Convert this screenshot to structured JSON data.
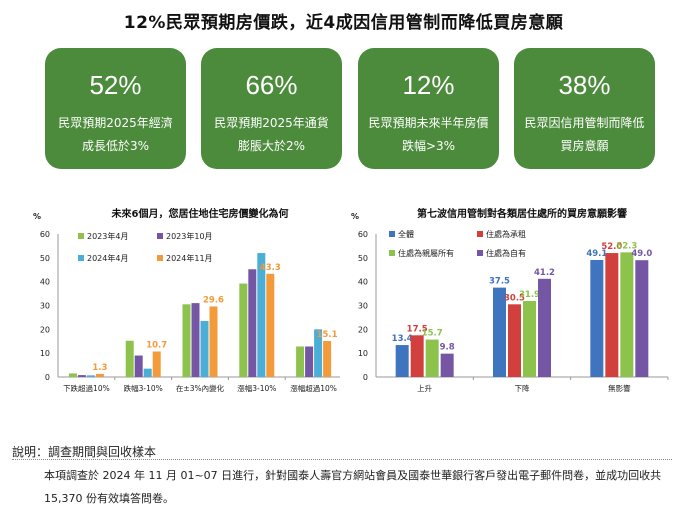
{
  "title": "12%民眾預期房價跌，近4成因信用管制而降低買房意願",
  "colors": {
    "card_bg": "#4b8b3b"
  },
  "cards": [
    {
      "value": "52%",
      "desc": "民眾預期2025年經濟成長低於3%"
    },
    {
      "value": "66%",
      "desc": "民眾預期2025年通貨膨脹大於2%"
    },
    {
      "value": "12%",
      "desc": "民眾預期未來半年房價跌幅>3%"
    },
    {
      "value": "38%",
      "desc": "民眾因信用管制而降低買房意願"
    }
  ],
  "chart_data": [
    {
      "type": "bar",
      "title": "未來6個月，您居住地住宅房價變化為何",
      "ylabel": "%",
      "ylim": [
        0,
        60
      ],
      "yticks": [
        0,
        10,
        20,
        30,
        40,
        50,
        60
      ],
      "categories": [
        "下跌超過10%",
        "跌幅3-10%",
        "在±3%內變化",
        "漲幅3-10%",
        "漲幅超過10%"
      ],
      "series": [
        {
          "name": "2023年4月",
          "color": "#8dc34c",
          "values": [
            1.5,
            15.2,
            30.5,
            39.2,
            12.8
          ]
        },
        {
          "name": "2023年10月",
          "color": "#7556a5",
          "values": [
            0.8,
            9.0,
            31.0,
            45.2,
            12.8
          ]
        },
        {
          "name": "2024年4月",
          "color": "#4aaed6",
          "values": [
            0.7,
            3.5,
            23.5,
            52.0,
            20.0
          ]
        },
        {
          "name": "2024年11月",
          "color": "#f39a3a",
          "values": [
            1.3,
            10.7,
            29.6,
            43.3,
            15.1
          ]
        }
      ],
      "labeled_series": 3,
      "legend": "top"
    },
    {
      "type": "bar",
      "title": "第七波信用管制對各類居住處所的買房意願影響",
      "ylabel": "%",
      "ylim": [
        0,
        60
      ],
      "yticks": [
        0,
        10,
        20,
        30,
        40,
        50,
        60
      ],
      "categories": [
        "上升",
        "下降",
        "無影響"
      ],
      "series": [
        {
          "name": "全體",
          "color": "#3f74bf",
          "values": [
            13.4,
            37.5,
            49.1
          ]
        },
        {
          "name": "住處為承租",
          "color": "#d2403e",
          "values": [
            17.5,
            30.5,
            52.0
          ]
        },
        {
          "name": "住處為親屬所有",
          "color": "#8dc34c",
          "values": [
            15.7,
            31.9,
            52.3
          ]
        },
        {
          "name": "住處為自有",
          "color": "#7556a5",
          "values": [
            9.8,
            41.2,
            49.0
          ]
        }
      ],
      "legend": "top-left"
    }
  ],
  "notes": {
    "title": "說明：調查期間與回收樣本",
    "text": "本項調查於 2024 年 11 月 01~07 日進行，針對國泰人壽官方網站會員及國泰世華銀行客戶發出電子郵件問卷，並成功回收共 15,370 份有效填答問卷。"
  }
}
